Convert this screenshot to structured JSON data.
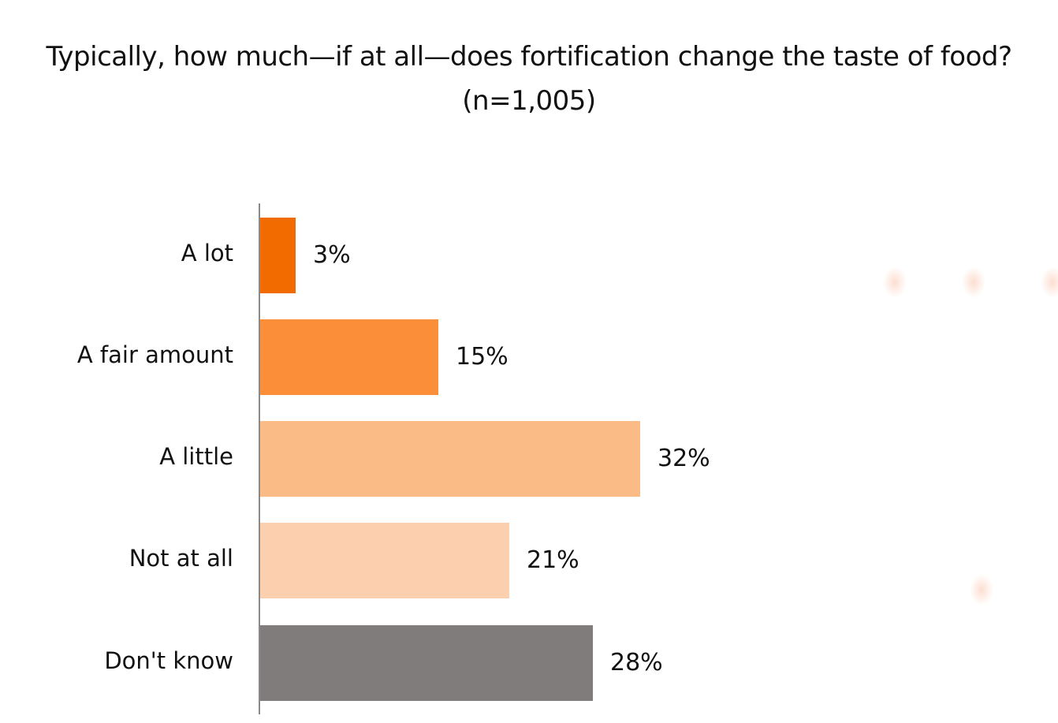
{
  "title": {
    "line1": "Typically, how much—if at all—does fortification change the taste of food?",
    "line2": "(n=1,005)"
  },
  "bars": [
    {
      "label": "A lot",
      "value_label": "3%",
      "color": "#F26B00"
    },
    {
      "label": "A fair amount",
      "value_label": "15%",
      "color": "#FB8E38"
    },
    {
      "label": "A little",
      "value_label": "32%",
      "color": "#FBBB87"
    },
    {
      "label": "Not at all",
      "value_label": "21%",
      "color": "#FCD0AE"
    },
    {
      "label": "Don't know",
      "value_label": "28%",
      "color": "#7F7C7B"
    }
  ],
  "chart_data": {
    "type": "bar",
    "orientation": "horizontal",
    "title": "Typically, how much—if at all—does fortification change the taste of food?",
    "subtitle": "(n=1,005)",
    "categories": [
      "A lot",
      "A fair amount",
      "A little",
      "Not at all",
      "Don't know"
    ],
    "values": [
      3,
      15,
      32,
      21,
      28
    ],
    "value_labels": [
      "3%",
      "15%",
      "32%",
      "21%",
      "28%"
    ],
    "colors": [
      "#F26B00",
      "#FB8E38",
      "#FBBB87",
      "#FCD0AE",
      "#7F7C7B"
    ],
    "xlabel": "",
    "ylabel": "",
    "grid": false,
    "legend": null,
    "unit": "%"
  }
}
